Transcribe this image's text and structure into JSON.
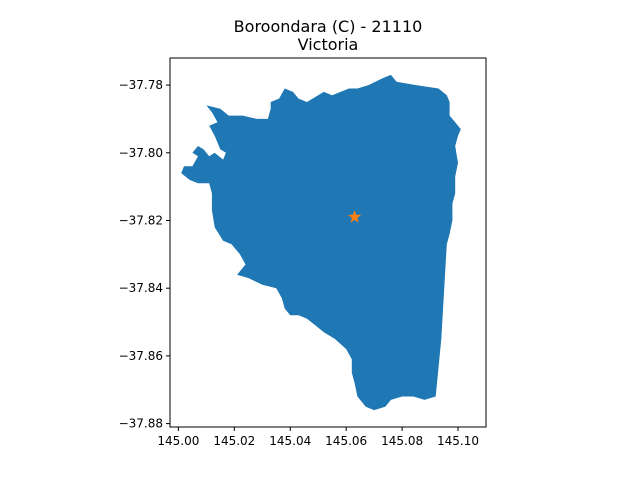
{
  "title": {
    "line1": "Boroondara (C) - 21110",
    "line2": "Victoria"
  },
  "colors": {
    "region_fill": "#1f77b4",
    "marker": "#ff7f0e",
    "axes": "#000000"
  },
  "chart_data": {
    "type": "map",
    "xlim": [
      144.997,
      145.11
    ],
    "ylim": [
      -37.881,
      -37.772
    ],
    "x_ticks": [
      145.0,
      145.02,
      145.04,
      145.06,
      145.08,
      145.1
    ],
    "x_tick_labels": [
      "145.00",
      "145.02",
      "145.04",
      "145.06",
      "145.08",
      "145.10"
    ],
    "y_ticks": [
      -37.78,
      -37.8,
      -37.82,
      -37.84,
      -37.86,
      -37.88
    ],
    "y_tick_labels": [
      "−37.78",
      "−37.80",
      "−37.82",
      "−37.84",
      "−37.86",
      "−37.88"
    ],
    "centroid": {
      "lon": 145.063,
      "lat": -37.819,
      "marker": "star"
    },
    "region": {
      "name": "Boroondara (C)",
      "outline": [
        [
          145.068,
          -37.78
        ],
        [
          145.073,
          -37.778
        ],
        [
          145.076,
          -37.777
        ],
        [
          145.078,
          -37.779
        ],
        [
          145.085,
          -37.78
        ],
        [
          145.093,
          -37.781
        ],
        [
          145.096,
          -37.783
        ],
        [
          145.097,
          -37.785
        ],
        [
          145.097,
          -37.789
        ],
        [
          145.099,
          -37.791
        ],
        [
          145.101,
          -37.793
        ],
        [
          145.1,
          -37.795
        ],
        [
          145.099,
          -37.798
        ],
        [
          145.1,
          -37.803
        ],
        [
          145.099,
          -37.807
        ],
        [
          145.099,
          -37.812
        ],
        [
          145.098,
          -37.815
        ],
        [
          145.098,
          -37.82
        ],
        [
          145.097,
          -37.824
        ],
        [
          145.096,
          -37.827
        ],
        [
          145.094,
          -37.855
        ],
        [
          145.092,
          -37.872
        ],
        [
          145.088,
          -37.873
        ],
        [
          145.084,
          -37.872
        ],
        [
          145.08,
          -37.872
        ],
        [
          145.076,
          -37.873
        ],
        [
          145.074,
          -37.875
        ],
        [
          145.07,
          -37.876
        ],
        [
          145.067,
          -37.875
        ],
        [
          145.064,
          -37.872
        ],
        [
          145.063,
          -37.868
        ],
        [
          145.062,
          -37.865
        ],
        [
          145.062,
          -37.861
        ],
        [
          145.06,
          -37.858
        ],
        [
          145.056,
          -37.855
        ],
        [
          145.052,
          -37.853
        ],
        [
          145.049,
          -37.851
        ],
        [
          145.046,
          -37.849
        ],
        [
          145.043,
          -37.848
        ],
        [
          145.04,
          -37.848
        ],
        [
          145.038,
          -37.846
        ],
        [
          145.037,
          -37.843
        ],
        [
          145.035,
          -37.84
        ],
        [
          145.03,
          -37.839
        ],
        [
          145.025,
          -37.837
        ],
        [
          145.021,
          -37.836
        ],
        [
          145.024,
          -37.833
        ],
        [
          145.022,
          -37.83
        ],
        [
          145.019,
          -37.827
        ],
        [
          145.016,
          -37.826
        ],
        [
          145.013,
          -37.822
        ],
        [
          145.012,
          -37.817
        ],
        [
          145.012,
          -37.812
        ],
        [
          145.011,
          -37.809
        ],
        [
          145.007,
          -37.809
        ],
        [
          145.004,
          -37.808
        ],
        [
          145.001,
          -37.806
        ],
        [
          145.002,
          -37.804
        ],
        [
          145.005,
          -37.804
        ],
        [
          145.007,
          -37.801
        ],
        [
          145.005,
          -37.8
        ],
        [
          145.007,
          -37.798
        ],
        [
          145.009,
          -37.799
        ],
        [
          145.011,
          -37.801
        ],
        [
          145.013,
          -37.8
        ],
        [
          145.016,
          -37.802
        ],
        [
          145.017,
          -37.8
        ],
        [
          145.015,
          -37.799
        ],
        [
          145.013,
          -37.795
        ],
        [
          145.011,
          -37.792
        ],
        [
          145.014,
          -37.791
        ],
        [
          145.012,
          -37.788
        ],
        [
          145.01,
          -37.786
        ],
        [
          145.015,
          -37.787
        ],
        [
          145.018,
          -37.789
        ],
        [
          145.023,
          -37.789
        ],
        [
          145.028,
          -37.79
        ],
        [
          145.032,
          -37.79
        ],
        [
          145.033,
          -37.787
        ],
        [
          145.033,
          -37.785
        ],
        [
          145.036,
          -37.784
        ],
        [
          145.038,
          -37.781
        ],
        [
          145.041,
          -37.782
        ],
        [
          145.043,
          -37.784
        ],
        [
          145.046,
          -37.785
        ],
        [
          145.048,
          -37.784
        ],
        [
          145.05,
          -37.783
        ],
        [
          145.052,
          -37.782
        ],
        [
          145.055,
          -37.783
        ],
        [
          145.058,
          -37.782
        ],
        [
          145.061,
          -37.781
        ],
        [
          145.064,
          -37.781
        ]
      ]
    }
  }
}
